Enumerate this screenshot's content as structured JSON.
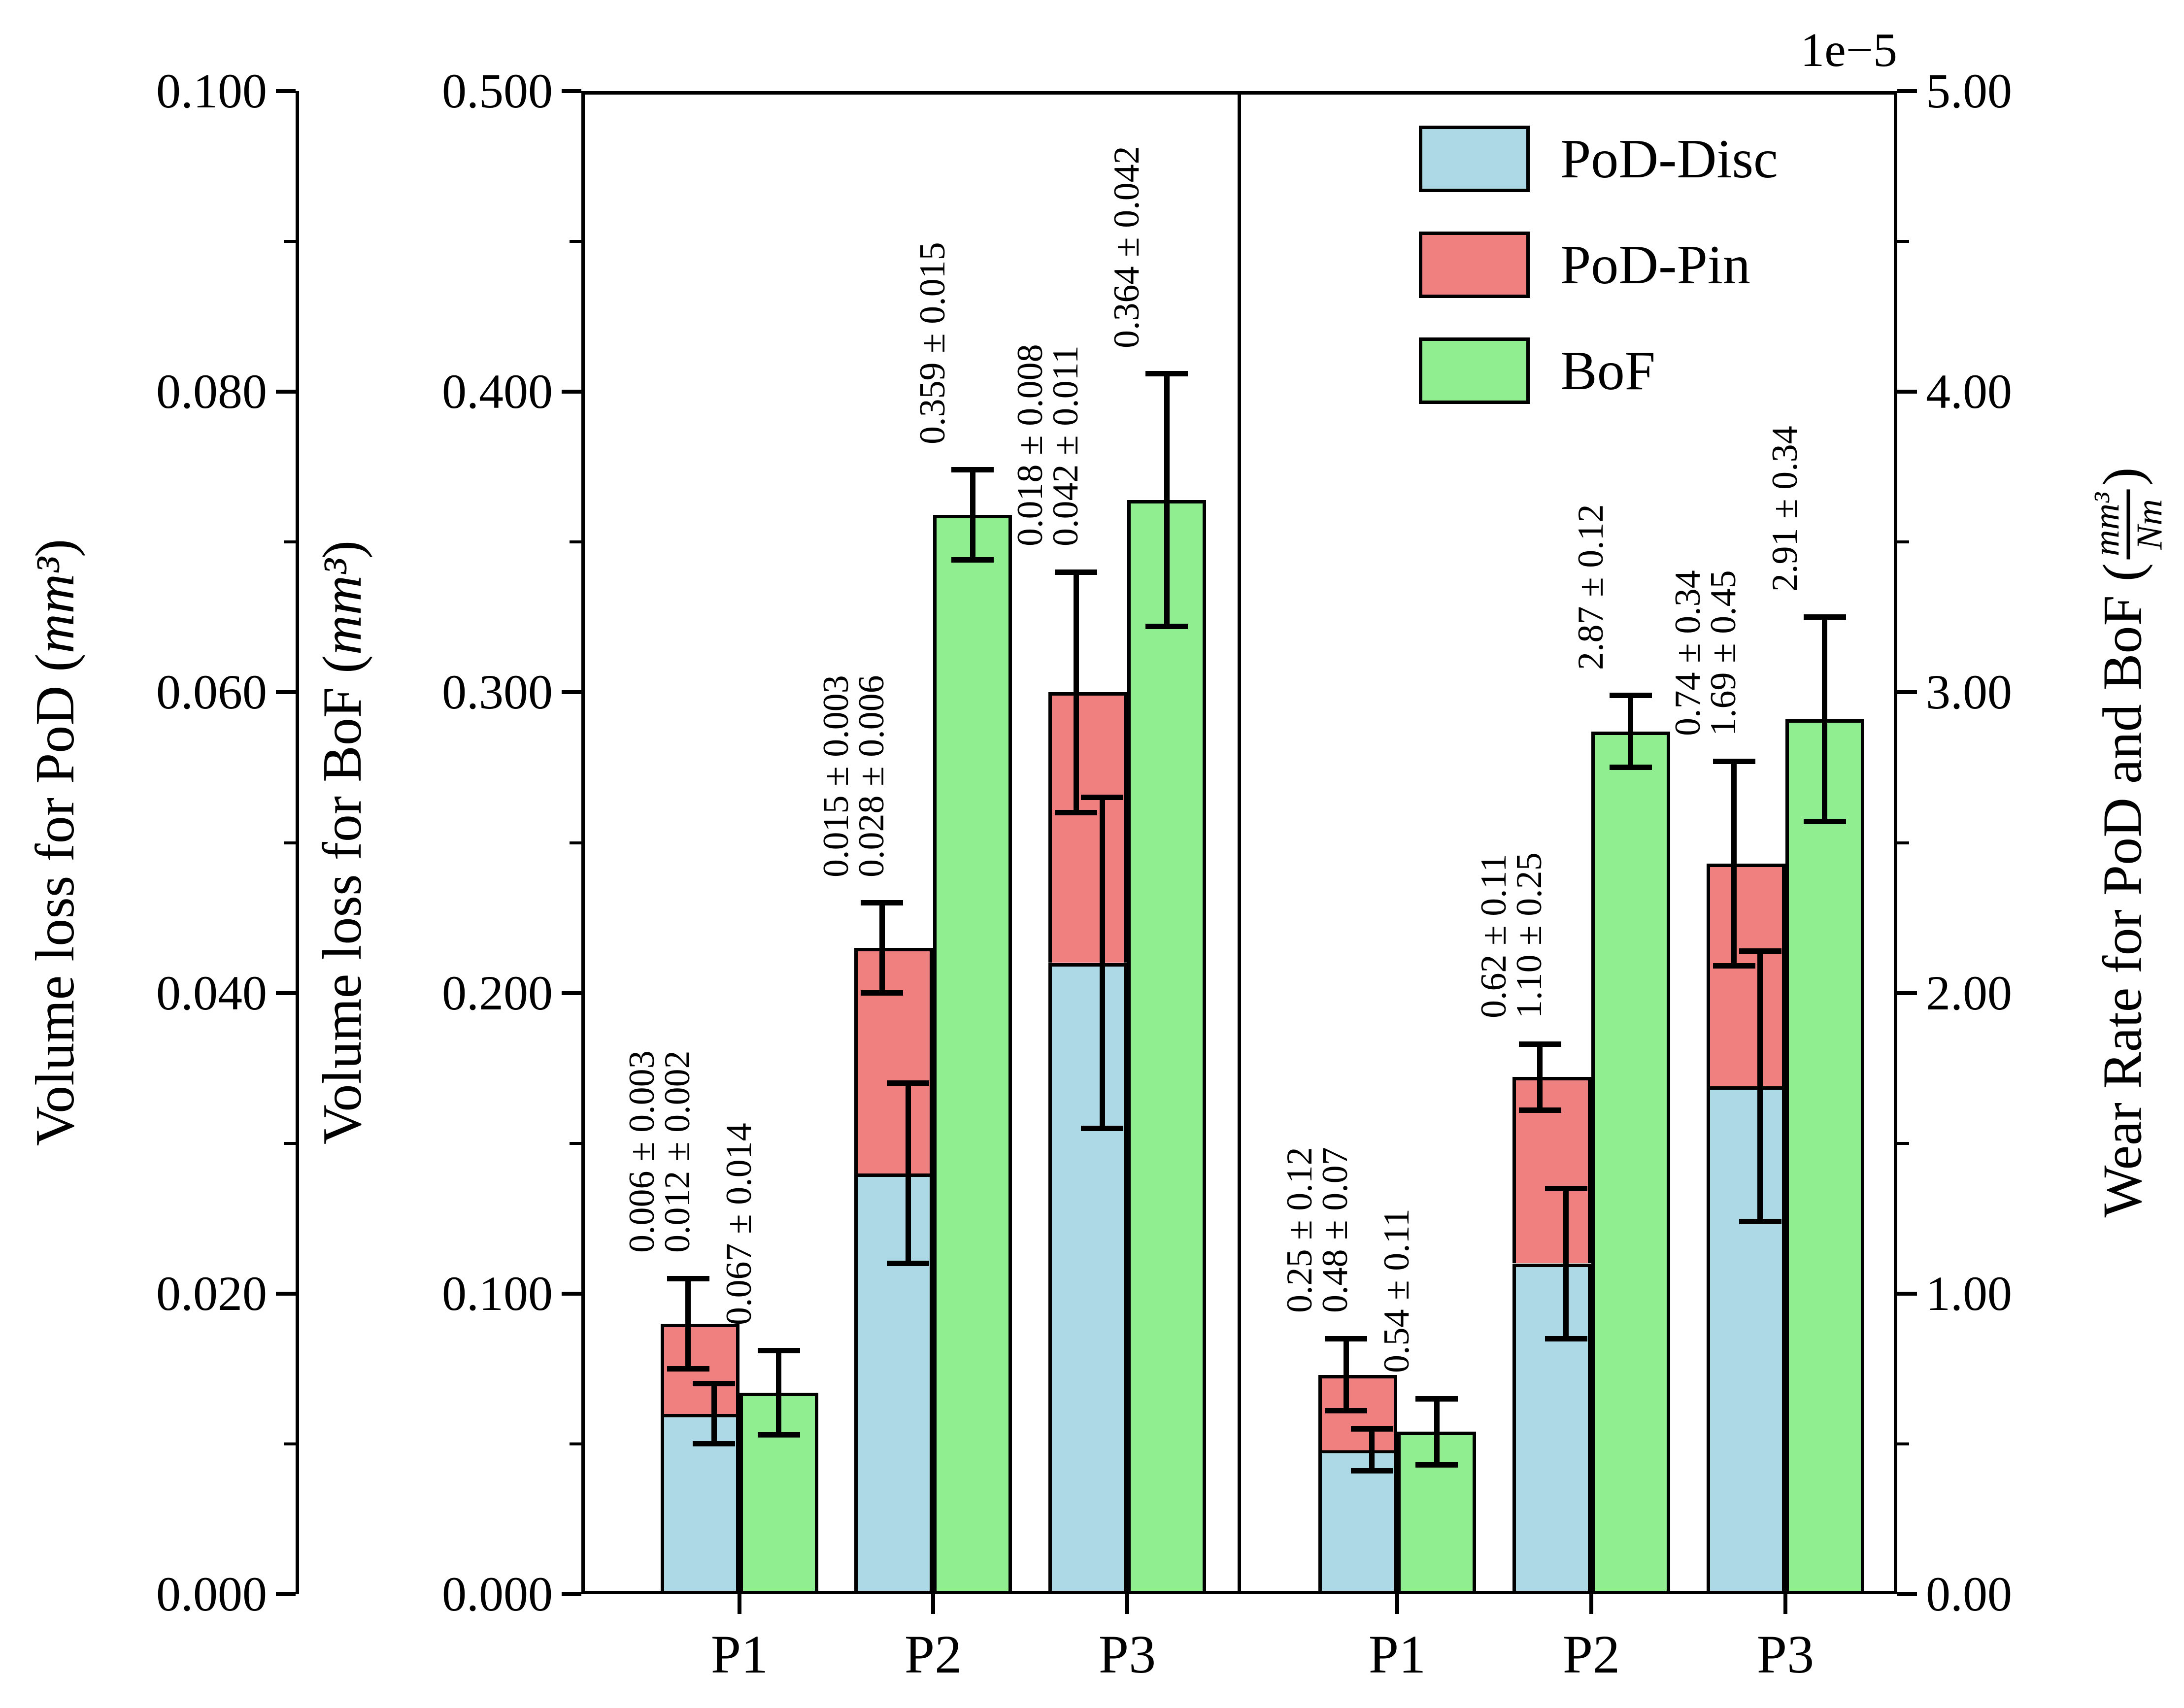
{
  "figure": {
    "multiplier_label": "1e−5",
    "background": "#ffffff"
  },
  "axes": {
    "pod": {
      "title_prefix": "Volume loss for PoD (",
      "title_unit": "mm³",
      "title_suffix": ")",
      "ticks": [
        "0.000",
        "0.020",
        "0.040",
        "0.060",
        "0.080",
        "0.100"
      ],
      "range": [
        0,
        0.1
      ],
      "minor_step": 0.01,
      "side": "left"
    },
    "bof": {
      "title_prefix": "Volume loss for BoF (",
      "title_unit": "mm³",
      "title_suffix": ")",
      "ticks": [
        "0.000",
        "0.100",
        "0.200",
        "0.300",
        "0.400",
        "0.500"
      ],
      "range": [
        0,
        0.5
      ],
      "minor_step": 0.05,
      "side": "left"
    },
    "wear": {
      "title_prefix": "Wear Rate for PoD and BoF (",
      "frac_num": "mm³",
      "frac_den": "Nm",
      "title_suffix": ")",
      "ticks": [
        "0.00",
        "1.00",
        "2.00",
        "3.00",
        "4.00",
        "5.00"
      ],
      "range": [
        0,
        5
      ],
      "minor_step": 0.5,
      "side": "right"
    }
  },
  "legend": [
    {
      "label": "PoD-Disc",
      "color": "#ADD8E6",
      "hatch": "diagonal"
    },
    {
      "label": "PoD-Pin",
      "color": "#F08080",
      "hatch": "none"
    },
    {
      "label": "BoF",
      "color": "#90EE90",
      "hatch": "dots"
    }
  ],
  "chart_data": {
    "type": "bar",
    "title": "",
    "grid": false,
    "legend_position": "upper right of right panel",
    "panels": [
      {
        "name": "volume-loss-panel",
        "categories": [
          "P1",
          "P2",
          "P3"
        ],
        "stacked_axis": "pod",
        "bof_axis": "bof",
        "groups": [
          {
            "category": "P1",
            "disc": {
              "value": 0.012,
              "err": 0.002,
              "label": "0.012 ± 0.002"
            },
            "pin": {
              "value": 0.006,
              "err": 0.003,
              "label": "0.006 ± 0.003"
            },
            "bof": {
              "value": 0.067,
              "err": 0.014,
              "label": "0.067 ± 0.014"
            }
          },
          {
            "category": "P2",
            "disc": {
              "value": 0.028,
              "err": 0.006,
              "label": "0.028 ± 0.006"
            },
            "pin": {
              "value": 0.015,
              "err": 0.003,
              "label": "0.015 ± 0.003"
            },
            "bof": {
              "value": 0.359,
              "err": 0.015,
              "label": "0.359 ± 0.015"
            }
          },
          {
            "category": "P3",
            "disc": {
              "value": 0.042,
              "err": 0.011,
              "label": "0.042 ± 0.011"
            },
            "pin": {
              "value": 0.018,
              "err": 0.008,
              "label": "0.018 ± 0.008"
            },
            "bof": {
              "value": 0.364,
              "err": 0.042,
              "label": "0.364 ± 0.042"
            }
          }
        ]
      },
      {
        "name": "wear-rate-panel",
        "categories": [
          "P1",
          "P2",
          "P3"
        ],
        "stacked_axis": "wear",
        "bof_axis": "wear",
        "groups": [
          {
            "category": "P1",
            "disc": {
              "value": 0.48,
              "err": 0.07,
              "label": "0.48 ± 0.07"
            },
            "pin": {
              "value": 0.25,
              "err": 0.12,
              "label": "0.25 ± 0.12"
            },
            "bof": {
              "value": 0.54,
              "err": 0.11,
              "label": "0.54 ± 0.11"
            }
          },
          {
            "category": "P2",
            "disc": {
              "value": 1.1,
              "err": 0.25,
              "label": "1.10 ± 0.25"
            },
            "pin": {
              "value": 0.62,
              "err": 0.11,
              "label": "0.62 ± 0.11"
            },
            "bof": {
              "value": 2.87,
              "err": 0.12,
              "label": "2.87 ± 0.12"
            }
          },
          {
            "category": "P3",
            "disc": {
              "value": 1.69,
              "err": 0.45,
              "label": "1.69 ± 0.45"
            },
            "pin": {
              "value": 0.74,
              "err": 0.34,
              "label": "0.74 ± 0.34"
            },
            "bof": {
              "value": 2.91,
              "err": 0.34,
              "label": "2.91 ± 0.34"
            }
          }
        ]
      }
    ]
  }
}
